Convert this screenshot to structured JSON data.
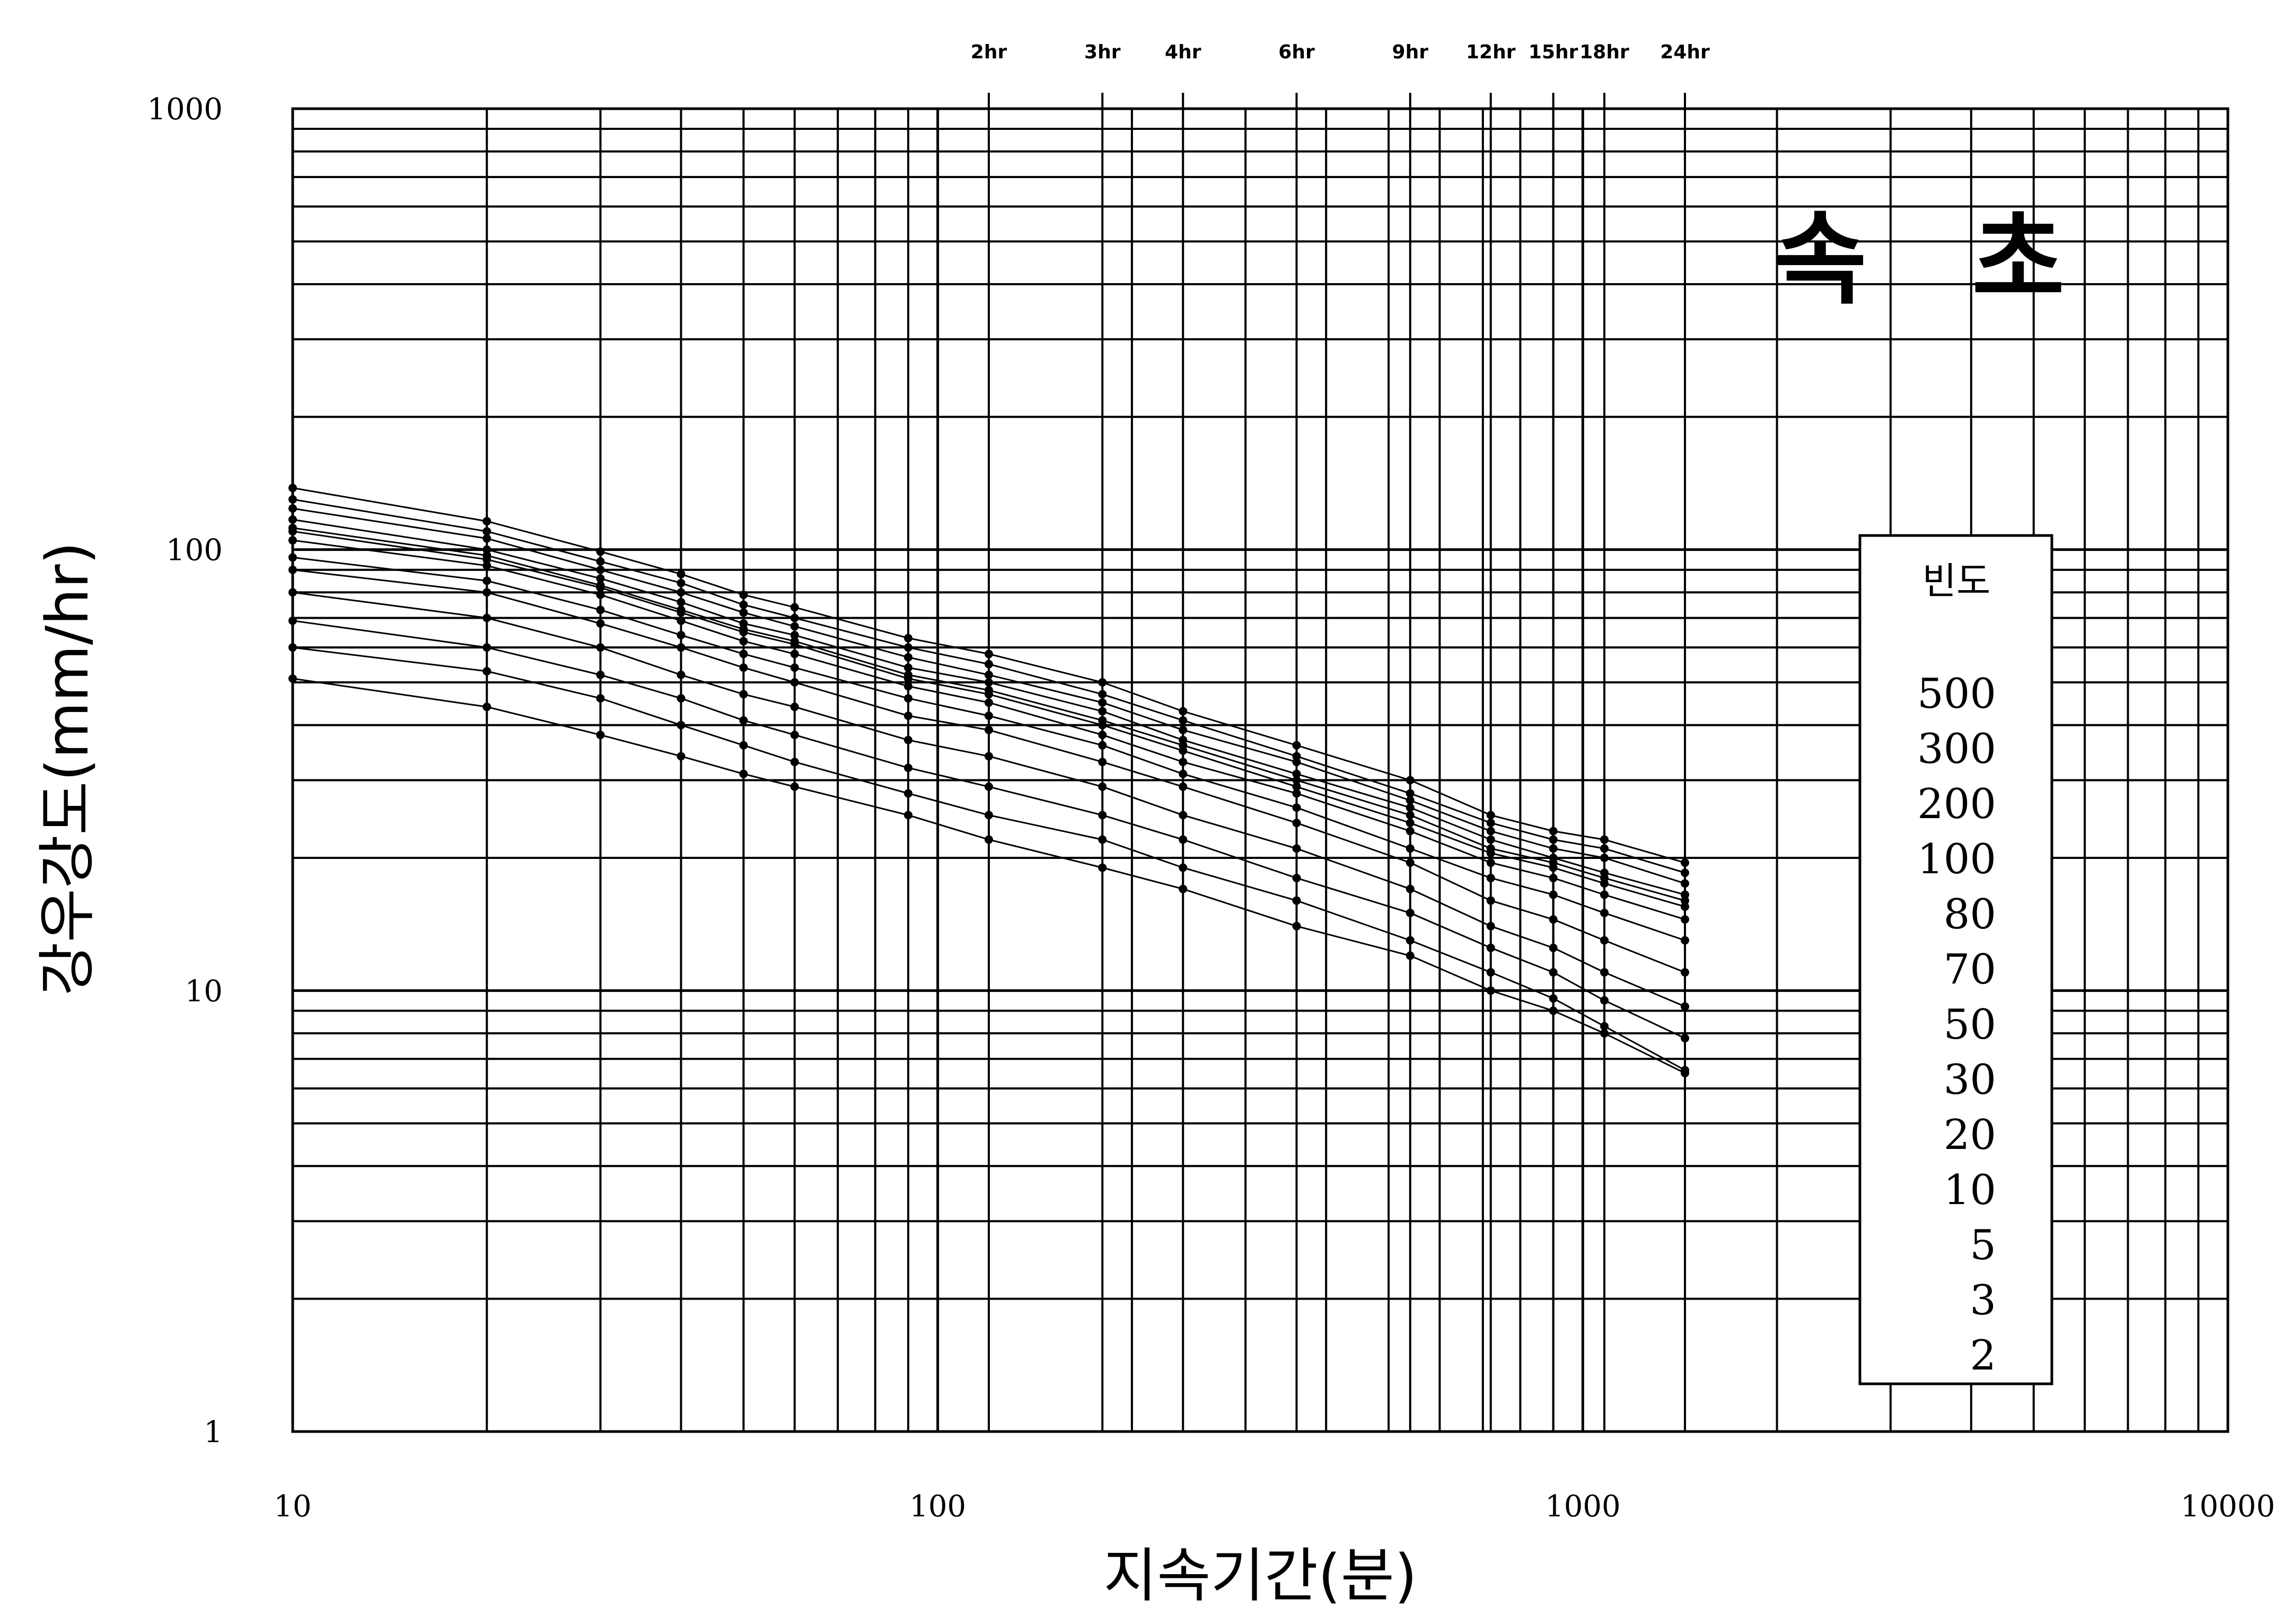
{
  "chart_data": {
    "type": "line",
    "title": "속   초",
    "xlabel": "지속기간(분)",
    "ylabel": "강우강도(mm/hr)",
    "xscale": "log",
    "yscale": "log",
    "xlim": [
      10,
      10000
    ],
    "ylim": [
      1,
      1000
    ],
    "x_ticks": [
      "10",
      "100",
      "1000",
      "10000"
    ],
    "y_ticks": [
      "1",
      "10",
      "100",
      "1000"
    ],
    "top_ticks": [
      {
        "label": "2hr",
        "x": 120
      },
      {
        "label": "3hr",
        "x": 180
      },
      {
        "label": "4hr",
        "x": 240
      },
      {
        "label": "6hr",
        "x": 360
      },
      {
        "label": "9hr",
        "x": 540
      },
      {
        "label": "12hr",
        "x": 720
      },
      {
        "label": "15hr",
        "x": 900
      },
      {
        "label": "18hr",
        "x": 1080
      },
      {
        "label": "24hr",
        "x": 1440
      }
    ],
    "grid": true,
    "legend": {
      "title": "빈도",
      "placement": "right",
      "entries": [
        "500",
        "300",
        "200",
        "100",
        "80",
        "70",
        "50",
        "30",
        "20",
        "10",
        "5",
        "3",
        "2"
      ]
    },
    "x": [
      10,
      20,
      30,
      40,
      50,
      60,
      90,
      120,
      180,
      240,
      360,
      540,
      720,
      900,
      1080,
      1440
    ],
    "series": [
      {
        "name": "500",
        "values": [
          138,
          116,
          99,
          88,
          79,
          74,
          63,
          58,
          50,
          43,
          36,
          30,
          25,
          23,
          22,
          19.5
        ]
      },
      {
        "name": "300",
        "values": [
          130,
          110,
          94,
          84,
          75,
          70,
          60,
          55,
          47,
          41,
          34,
          28,
          24,
          22,
          21,
          18.5
        ]
      },
      {
        "name": "200",
        "values": [
          124,
          106,
          90,
          80,
          72,
          67,
          57,
          52,
          45,
          39,
          33,
          27,
          23,
          21,
          20,
          17.5
        ]
      },
      {
        "name": "100",
        "values": [
          117,
          100,
          86,
          76,
          68,
          64,
          54,
          50,
          43,
          37,
          31,
          26,
          22,
          20,
          18.5,
          16.5
        ]
      },
      {
        "name": "80",
        "values": [
          112,
          97,
          83,
          73,
          66,
          62,
          52,
          48,
          41,
          36,
          30,
          25,
          21,
          19.5,
          18,
          16
        ]
      },
      {
        "name": "70",
        "values": [
          110,
          95,
          82,
          72,
          65,
          61,
          51,
          47,
          40,
          35,
          29,
          24,
          20.5,
          19,
          17.5,
          15.5
        ]
      },
      {
        "name": "50",
        "values": [
          105,
          92,
          79,
          69,
          62,
          58,
          49,
          45,
          38,
          33,
          28,
          23,
          19.5,
          18,
          16.5,
          14.5
        ]
      },
      {
        "name": "30",
        "values": [
          96,
          85,
          73,
          64,
          58,
          54,
          46,
          42,
          36,
          31,
          26,
          21,
          18,
          16.5,
          15,
          13
        ]
      },
      {
        "name": "20",
        "values": [
          90,
          80,
          68,
          60,
          54,
          50,
          42,
          39,
          33,
          29,
          24,
          19.5,
          16,
          14.5,
          13,
          11
        ]
      },
      {
        "name": "10",
        "values": [
          80,
          70,
          60,
          52,
          47,
          44,
          37,
          34,
          29,
          25,
          21,
          17,
          14,
          12.5,
          11,
          9.2
        ]
      },
      {
        "name": "5",
        "values": [
          69,
          60,
          52,
          46,
          41,
          38,
          32,
          29,
          25,
          22,
          18,
          15,
          12.5,
          11,
          9.5,
          7.8
        ]
      },
      {
        "name": "3",
        "values": [
          60,
          53,
          46,
          40,
          36,
          33,
          28,
          25,
          22,
          19,
          16,
          13,
          11,
          9.6,
          8.3,
          6.6
        ]
      },
      {
        "name": "2",
        "values": [
          51,
          44,
          38,
          34,
          31,
          29,
          25,
          22,
          19,
          17,
          14,
          12,
          10,
          9,
          8,
          6.5
        ]
      }
    ]
  }
}
